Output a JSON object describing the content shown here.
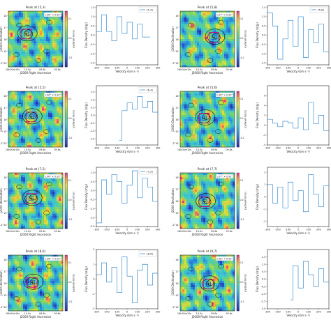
{
  "colors": {
    "spectrum_line": "#3d8fd1",
    "frame": "#222222",
    "contour": "#111111",
    "box_magenta": "#e6007e",
    "box_blue": "#2b35d8"
  },
  "map_common": {
    "xlabel": "J2000 Right Ascension",
    "ylabel": "J2000 Declination",
    "cbar_label": "(Jy/beam km/s)",
    "dec_ticks": [
      "18'",
      "17'",
      "16'",
      "15'",
      "-2°14'"
    ],
    "ra_ticks": [
      "18h00m10s",
      "10.0s",
      "09.8s",
      "09.6s"
    ],
    "cbar_ticks": [
      "0.1",
      "0.0",
      "-0.1"
    ]
  },
  "spec_common": {
    "xlabel": "Velocity (km s⁻¹)",
    "ylabel": "Flux Density (mJy)"
  },
  "chart_data": [
    {
      "type": "image",
      "id": "map-5-3",
      "title": "Peak at (5,3)",
      "badge": "1.08\" × 0.92\"",
      "crosshair": [
        0.33,
        0.41
      ]
    },
    {
      "type": "line",
      "id": "spec-5-3",
      "legend": "(5,3)",
      "x": [
        -300,
        -275,
        -250,
        -225,
        -200,
        -175,
        -150,
        -125,
        -100,
        -75,
        -50,
        -25,
        0,
        25,
        50,
        75,
        100,
        125,
        150,
        175,
        200
      ],
      "values": [
        0.2,
        0.2,
        1.1,
        1.1,
        0.2,
        0.2,
        -0.3,
        -0.3,
        1.0,
        1.0,
        0.1,
        0.1,
        0.7,
        0.7,
        -0.2,
        -0.2,
        0.6,
        0.6,
        -0.1,
        -0.1,
        -0.1
      ],
      "xlim": [
        -300,
        300
      ],
      "ylim": [
        -1.6,
        1.6
      ],
      "xticks": [
        -300,
        -200,
        -100,
        0,
        100,
        200,
        300
      ],
      "yticks": [
        -1.5,
        -1.0,
        -0.5,
        0.0,
        0.5,
        1.0,
        1.5
      ]
    },
    {
      "type": "image",
      "id": "map-5-8",
      "title": "Peak at (5,8)",
      "badge": "1.07\" × 0.92\"",
      "crosshair": [
        0.62,
        0.47
      ]
    },
    {
      "type": "line",
      "id": "spec-5-8",
      "legend": "(5,8)",
      "x": [
        -300,
        -275,
        -250,
        -225,
        -200,
        -175,
        -150,
        -125,
        -100,
        -75,
        -50,
        -25,
        0,
        25,
        50,
        75,
        100,
        125,
        150,
        175,
        200,
        225,
        250,
        275
      ],
      "values": [
        1.2,
        1.2,
        0.5,
        0.5,
        -1.3,
        -1.3,
        -0.2,
        -0.2,
        0.8,
        0.8,
        -0.6,
        -0.6,
        1.0,
        1.0,
        -1.2,
        -1.2,
        0.3,
        0.3,
        -0.4,
        -0.4,
        0.6,
        0.6,
        -0.9,
        -0.9
      ],
      "xlim": [
        -300,
        300
      ],
      "ylim": [
        -1.6,
        1.6
      ],
      "xticks": [
        -300,
        -200,
        -100,
        0,
        100,
        200,
        300
      ],
      "yticks": [
        -1.5,
        -1.0,
        -0.5,
        0.0,
        0.5,
        1.0,
        1.5
      ]
    },
    {
      "type": "image",
      "id": "map-5-5",
      "title": "Peak at (5,5)",
      "badge": "1.06\" × 0.92\"",
      "crosshair": [
        0.42,
        0.46
      ]
    },
    {
      "type": "line",
      "id": "spec-6-4",
      "legend": "(6,4)",
      "x": [
        -75,
        -50,
        -25,
        0,
        25,
        50,
        75,
        100,
        125,
        150,
        175,
        200,
        225,
        250,
        275
      ],
      "values": [
        -1.6,
        0.3,
        0.3,
        0.8,
        0.8,
        0.4,
        0.4,
        1.2,
        1.2,
        0.5,
        0.5,
        0.9,
        0.9,
        0.2,
        0.2
      ],
      "xlim": [
        -300,
        300
      ],
      "ylim": [
        -1.9,
        1.9
      ],
      "xticks": [
        -300,
        -200,
        -100,
        0,
        100,
        200,
        300
      ],
      "yticks": [
        -1.5,
        -1.0,
        -0.5,
        0.0,
        0.5,
        1.0,
        1.5
      ]
    },
    {
      "type": "image",
      "id": "map-5-6",
      "title": "Peak at (5,6)",
      "badge": "1.06\" × 0.92\"",
      "crosshair": [
        0.44,
        0.48
      ]
    },
    {
      "type": "line",
      "id": "spec-5-6",
      "legend": "",
      "x": [
        -300,
        -275,
        -250,
        -225,
        -200,
        -175,
        -150,
        -125,
        -100,
        -75,
        -50,
        -25,
        0,
        25,
        50,
        75,
        100,
        125,
        150,
        175,
        200,
        225,
        250,
        275
      ],
      "values": [
        1.2,
        1.2,
        0.4,
        0.4,
        -0.3,
        -0.3,
        0.8,
        0.8,
        0.5,
        0.5,
        -0.6,
        -0.6,
        1.5,
        1.5,
        -0.9,
        -0.9,
        4.6,
        4.6,
        0.3,
        0.3,
        2.0,
        2.0,
        -1.1,
        -1.1
      ],
      "xlim": [
        -300,
        300
      ],
      "ylim": [
        -4,
        8
      ],
      "xticks": [
        -300,
        -200,
        -100,
        0,
        100,
        200,
        300
      ],
      "yticks": [
        -4,
        -2,
        0,
        2,
        4,
        6
      ]
    },
    {
      "type": "image",
      "id": "map-7-5",
      "title": "Peak at (7,5)",
      "badge": "1.06\" × 0.92\"",
      "crosshair": [
        0.42,
        0.46
      ]
    },
    {
      "type": "line",
      "id": "spec-7-5",
      "legend": "(7,5)",
      "x": [
        -300,
        -275,
        -250,
        -225,
        -200,
        -175,
        -150,
        -125,
        -100,
        -75,
        -50,
        -25,
        0,
        25,
        50,
        75,
        100,
        125,
        150,
        175,
        200,
        225,
        250,
        275
      ],
      "values": [
        -1.8,
        -1.8,
        0.6,
        0.6,
        -0.2,
        -0.2,
        0.9,
        0.9,
        0.5,
        0.5,
        -0.7,
        -0.7,
        0.3,
        0.3,
        1.1,
        1.1,
        -0.4,
        -0.4,
        0.7,
        0.7,
        0.2,
        0.2,
        -0.6,
        -0.6
      ],
      "xlim": [
        -300,
        300
      ],
      "ylim": [
        -2,
        1.3
      ],
      "xticks": [
        -300,
        -200,
        -100,
        0,
        100,
        200,
        300
      ],
      "yticks": [
        -2.0,
        -1.5,
        -1.0,
        -0.5,
        0.0,
        0.5,
        1.0
      ]
    },
    {
      "type": "image",
      "id": "map-7-7",
      "title": "Peak at (7,7)",
      "badge": "1.07\" × 0.92\"",
      "crosshair": [
        0.45,
        0.52
      ]
    },
    {
      "type": "line",
      "id": "spec-7-7",
      "legend": "",
      "x": [
        -300,
        -275,
        -250,
        -225,
        -200,
        -175,
        -150,
        -125,
        -100,
        -75,
        -50,
        -25,
        0,
        25,
        50,
        75,
        100,
        125,
        150,
        175,
        200,
        225,
        250,
        275
      ],
      "values": [
        1.0,
        1.0,
        -0.5,
        -0.5,
        0.8,
        0.8,
        -0.9,
        -0.9,
        1.2,
        1.2,
        -0.3,
        -0.3,
        0.5,
        0.5,
        -1.2,
        -1.2,
        1.8,
        1.8,
        0.2,
        0.2,
        -0.8,
        -0.8,
        0.9,
        0.9
      ],
      "xlim": [
        -300,
        300
      ],
      "ylim": [
        -2.4,
        2.4
      ],
      "xticks": [
        -300,
        -200,
        -100,
        0,
        100,
        200,
        300
      ],
      "yticks": [
        -2,
        -1,
        0,
        1,
        2
      ]
    },
    {
      "type": "image",
      "id": "map-8-6",
      "title": "Peak at (8,6)",
      "badge": "1.08\" × 0.92\"",
      "crosshair": [
        0.44,
        0.49
      ]
    },
    {
      "type": "line",
      "id": "spec-8-6",
      "legend": "(8,6)",
      "x": [
        -300,
        -275,
        -250,
        -225,
        -200,
        -175,
        -150,
        -125,
        -100,
        -75,
        -50,
        -25,
        0,
        25,
        50,
        75,
        100,
        125,
        150,
        175,
        200,
        225,
        250,
        275
      ],
      "values": [
        0.3,
        0.3,
        1.1,
        1.1,
        -0.2,
        -0.2,
        0.8,
        0.8,
        -0.9,
        -0.9,
        1.5,
        1.5,
        0.2,
        0.2,
        -1.6,
        -1.6,
        0.6,
        0.6,
        1.0,
        1.0,
        -0.4,
        -0.4,
        0.4,
        0.4
      ],
      "xlim": [
        -300,
        300
      ],
      "ylim": [
        -2,
        2
      ],
      "xticks": [
        -300,
        -200,
        -100,
        0,
        100,
        200,
        300
      ],
      "yticks": [
        -2,
        -1,
        0,
        1,
        2
      ]
    },
    {
      "type": "image",
      "id": "map-9-7",
      "title": "Peak at (9,7)",
      "badge": "1.06\" × 0.92\"",
      "crosshair": [
        0.52,
        0.52
      ]
    },
    {
      "type": "line",
      "id": "spec-9-7",
      "legend": "",
      "x": [
        -75,
        -50,
        -25,
        0,
        25,
        50,
        75,
        100,
        125,
        150,
        175,
        200,
        225,
        250,
        275
      ],
      "values": [
        -1.4,
        0.9,
        0.9,
        -0.6,
        -0.6,
        1.2,
        1.2,
        0.3,
        0.3,
        -0.5,
        -0.5,
        0.7,
        0.7,
        -0.2,
        -0.2
      ],
      "xlim": [
        -300,
        300
      ],
      "ylim": [
        -2,
        2
      ],
      "xticks": [
        -300,
        -200,
        -100,
        0,
        100,
        200,
        300
      ],
      "yticks": [
        -2.0,
        -1.5,
        -1.0,
        -0.5,
        0.0,
        0.5,
        1.0,
        1.5
      ]
    }
  ]
}
